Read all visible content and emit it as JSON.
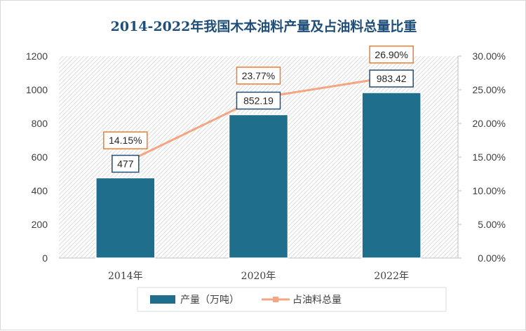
{
  "chart_data": {
    "type": "bar",
    "title": "2014-2022年我国木本油料产量及占油料总量比重",
    "categories": [
      "2014年",
      "2020年",
      "2022年"
    ],
    "series": [
      {
        "name": "产量（万吨）",
        "type": "bar",
        "axis": "left",
        "values": [
          477,
          852.19,
          983.42
        ],
        "labels": [
          "477",
          "852.19",
          "983.42"
        ],
        "color": "#1f6e8c"
      },
      {
        "name": "占油料总量比重",
        "type": "line",
        "axis": "right",
        "values": [
          14.15,
          23.77,
          26.9
        ],
        "labels": [
          "14.15%",
          "23.77%",
          "26.90%"
        ],
        "color": "#f4a582"
      }
    ],
    "y_left": {
      "min": 0,
      "max": 1200,
      "step": 200,
      "ticks": [
        "0",
        "200",
        "400",
        "600",
        "800",
        "1000",
        "1200"
      ]
    },
    "y_right": {
      "min": 0,
      "max": 30,
      "step": 5,
      "ticks": [
        "0.00%",
        "5.00%",
        "10.00%",
        "15.00%",
        "20.00%",
        "25.00%",
        "30.00%"
      ]
    },
    "grid": false,
    "legend": "bottom",
    "legend_labels": [
      "产量（万吨）",
      "占油料总量"
    ]
  }
}
